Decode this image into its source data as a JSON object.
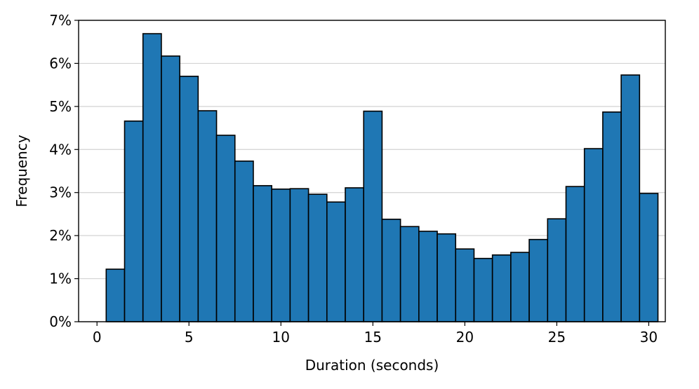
{
  "chart_data": {
    "type": "histogram",
    "xlabel": "Duration (seconds)",
    "ylabel": "Frequency",
    "bins": [
      0.5,
      1.5,
      2.5,
      3.5,
      4.5,
      5.5,
      6.5,
      7.5,
      8.5,
      9.5,
      10.5,
      11.5,
      12.5,
      13.5,
      14.5,
      15.5,
      16.5,
      17.5,
      18.5,
      19.5,
      20.5,
      21.5,
      22.5,
      23.5,
      24.5,
      25.5,
      26.5,
      27.5,
      28.5,
      29.5,
      30.5
    ],
    "values": [
      1.22,
      4.66,
      6.69,
      6.17,
      5.7,
      4.9,
      4.33,
      3.73,
      3.16,
      3.08,
      3.09,
      2.96,
      2.78,
      3.11,
      4.89,
      2.38,
      2.21,
      2.1,
      2.04,
      1.69,
      1.47,
      1.55,
      1.61,
      1.91,
      2.39,
      3.14,
      4.02,
      4.87,
      5.73,
      2.98
    ],
    "color": "#1f77b4",
    "edgecolor": "#000000",
    "xlim": [
      -1,
      30.9
    ],
    "xticks": [
      0,
      5,
      10,
      15,
      20,
      25,
      30
    ],
    "ylim": [
      0,
      7
    ],
    "yticks": [
      {
        "value": 0,
        "label": "0%"
      },
      {
        "value": 1,
        "label": "1%"
      },
      {
        "value": 2,
        "label": "2%"
      },
      {
        "value": 3,
        "label": "3%"
      },
      {
        "value": 4,
        "label": "4%"
      },
      {
        "value": 5,
        "label": "5%"
      },
      {
        "value": 6,
        "label": "6%"
      },
      {
        "value": 7,
        "label": "7%"
      }
    ],
    "grid": true
  }
}
